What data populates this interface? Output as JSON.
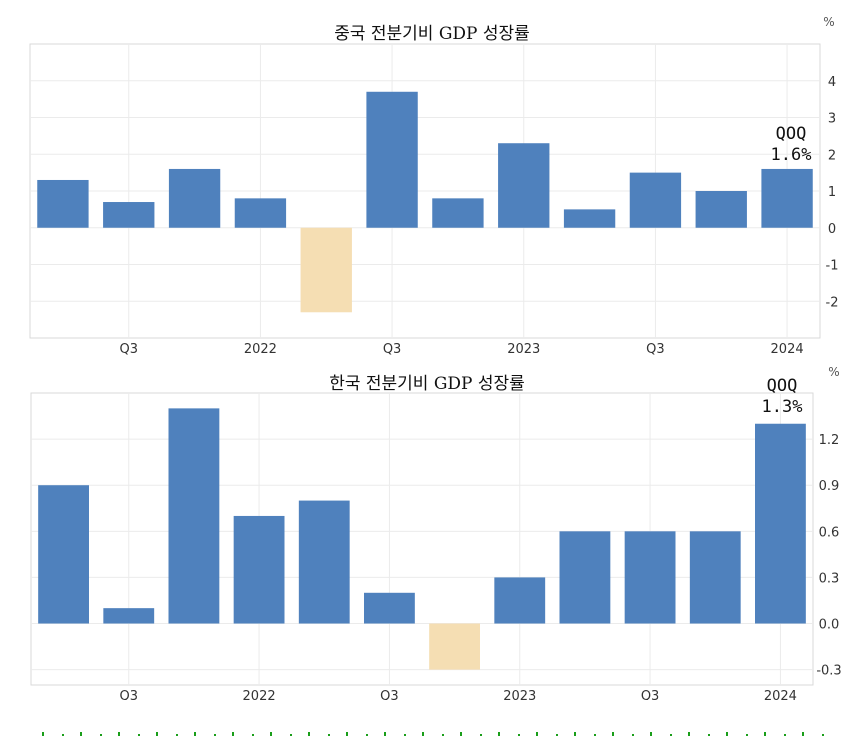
{
  "colors": {
    "positive": "#4f81bd",
    "negative": "#f5deb3",
    "grid": "#ebebeb",
    "frame": "#d9d9d9",
    "dots": "#1a9e1a"
  },
  "chart_data": [
    {
      "type": "bar",
      "title": "중국 전분기비 GDP 성장률",
      "unit": "%",
      "values": [
        1.3,
        0.7,
        1.6,
        0.8,
        -2.3,
        3.7,
        0.8,
        2.3,
        0.5,
        1.5,
        1.0,
        1.6
      ],
      "ylim": [
        -3.0,
        5.0
      ],
      "yticks": [
        {
          "value": 4,
          "label": "4"
        },
        {
          "value": 3,
          "label": "3"
        },
        {
          "value": 2,
          "label": "2"
        },
        {
          "value": 1,
          "label": "1"
        },
        {
          "value": 0,
          "label": "0"
        },
        {
          "value": -1,
          "label": "-1"
        },
        {
          "value": -2,
          "label": "-2"
        }
      ],
      "xticks": [
        {
          "pos": 1.5,
          "label": "Q3"
        },
        {
          "pos": 3.5,
          "label": "2022"
        },
        {
          "pos": 5.5,
          "label": "Q3"
        },
        {
          "pos": 7.5,
          "label": "2023"
        },
        {
          "pos": 9.5,
          "label": "Q3"
        },
        {
          "pos": 11.5,
          "label": "2024"
        }
      ],
      "annotation": {
        "line1": "QOQ",
        "line2": "1.6%"
      }
    },
    {
      "type": "bar",
      "title": "한국 전분기비 GDP 성장률",
      "unit": "%",
      "values": [
        0.9,
        0.1,
        1.4,
        0.7,
        0.8,
        0.2,
        -0.3,
        0.3,
        0.6,
        0.6,
        0.6,
        1.3
      ],
      "ylim": [
        -0.4,
        1.5
      ],
      "yticks": [
        {
          "value": 1.2,
          "label": "1.2"
        },
        {
          "value": 0.9,
          "label": "0.9"
        },
        {
          "value": 0.6,
          "label": "0.6"
        },
        {
          "value": 0.3,
          "label": "0.3"
        },
        {
          "value": 0.0,
          "label": "0.0"
        },
        {
          "value": -0.3,
          "label": "-0.3"
        }
      ],
      "xticks": [
        {
          "pos": 1.5,
          "label": "Q3"
        },
        {
          "pos": 3.5,
          "label": "2022"
        },
        {
          "pos": 5.5,
          "label": "Q3"
        },
        {
          "pos": 7.5,
          "label": "2023"
        },
        {
          "pos": 9.5,
          "label": "Q3"
        },
        {
          "pos": 11.5,
          "label": "2024"
        }
      ],
      "annotation": {
        "line1": "QOQ",
        "line2": "1.3%"
      }
    }
  ]
}
